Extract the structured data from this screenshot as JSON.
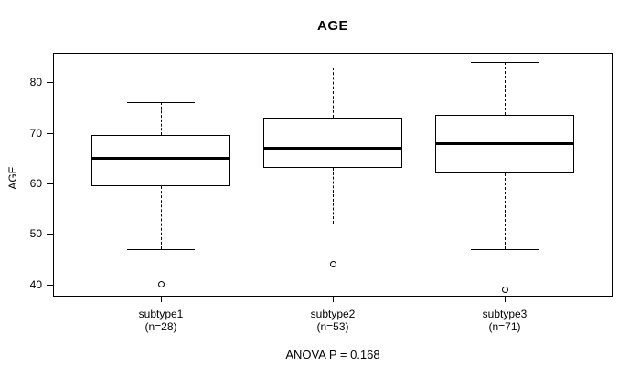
{
  "page": {
    "background_color": "#ffffff",
    "line_color": "#000000"
  },
  "chart_data": {
    "type": "boxplot",
    "title": "AGE",
    "ylabel": "AGE",
    "xlabel": "",
    "footer": "ANOVA P = 0.168",
    "anova_p": 0.168,
    "ylim": [
      37.6,
      85.8
    ],
    "yticks": [
      40,
      50,
      60,
      70,
      80
    ],
    "grid": false,
    "legend": "none",
    "colors": {
      "line": "#000000",
      "box_fill": "#ffffff",
      "background": "#ffffff"
    },
    "groups": [
      {
        "label": "subtype1",
        "sublabel": "(n=28)",
        "n": 28,
        "whisker_low": 47,
        "q1": 59.5,
        "median": 65,
        "q3": 69.5,
        "whisker_high": 76,
        "outliers": [
          40
        ]
      },
      {
        "label": "subtype2",
        "sublabel": "(n=53)",
        "n": 53,
        "whisker_low": 52,
        "q1": 63,
        "median": 67,
        "q3": 73,
        "whisker_high": 83,
        "outliers": [
          44
        ]
      },
      {
        "label": "subtype3",
        "sublabel": "(n=71)",
        "n": 71,
        "whisker_low": 47,
        "q1": 62,
        "median": 68,
        "q3": 73.5,
        "whisker_high": 84,
        "outliers": [
          39
        ]
      }
    ]
  }
}
